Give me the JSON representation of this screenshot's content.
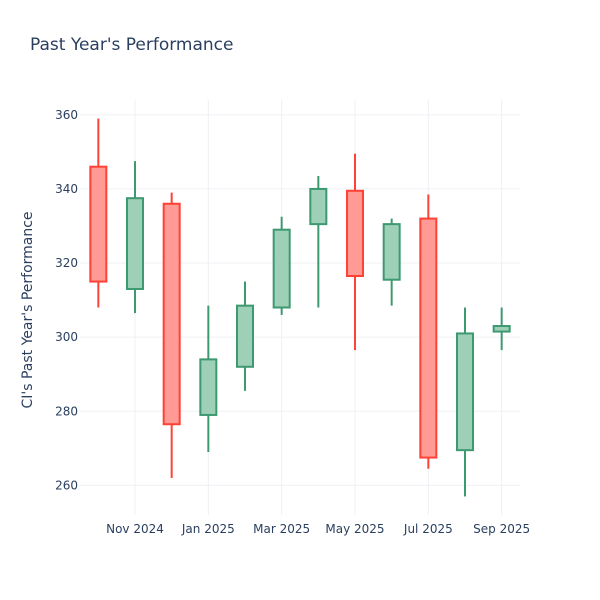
{
  "chart_data": {
    "type": "candlestick",
    "title": "Past Year's Performance",
    "xlabel": "",
    "ylabel": "CI's Past Year's Performance",
    "ylim": [
      252,
      364
    ],
    "y_ticks": [
      260,
      280,
      300,
      320,
      340,
      360
    ],
    "x_tick_labels": [
      "Nov 2024",
      "Jan 2025",
      "Mar 2025",
      "May 2025",
      "Jul 2025",
      "Sep 2025"
    ],
    "x_tick_positions": [
      1,
      3,
      5,
      7,
      9,
      11
    ],
    "colors": {
      "increasing_line": "#3d9970",
      "increasing_fill": "#9ecfb7",
      "decreasing_line": "#ff4136",
      "decreasing_fill": "#ff9a95"
    },
    "candles": [
      {
        "month": "Oct 2024",
        "open": 346,
        "high": 359,
        "low": 308,
        "close": 315
      },
      {
        "month": "Nov 2024",
        "open": 313,
        "high": 347.5,
        "low": 306.5,
        "close": 337.5
      },
      {
        "month": "Dec 2024",
        "open": 336,
        "high": 339,
        "low": 262,
        "close": 276.5
      },
      {
        "month": "Jan 2025",
        "open": 279,
        "high": 308.5,
        "low": 269,
        "close": 294
      },
      {
        "month": "Feb 2025",
        "open": 292,
        "high": 315,
        "low": 285.5,
        "close": 308.5
      },
      {
        "month": "Mar 2025",
        "open": 308,
        "high": 332.5,
        "low": 306,
        "close": 329
      },
      {
        "month": "Apr 2025",
        "open": 330.5,
        "high": 343.5,
        "low": 308,
        "close": 340
      },
      {
        "month": "May 2025",
        "open": 339.5,
        "high": 349.5,
        "low": 296.5,
        "close": 316.5
      },
      {
        "month": "Jun 2025",
        "open": 315.5,
        "high": 332,
        "low": 308.5,
        "close": 330.5
      },
      {
        "month": "Jul 2025",
        "open": 332,
        "high": 338.5,
        "low": 264.5,
        "close": 267.5
      },
      {
        "month": "Aug 2025",
        "open": 269.5,
        "high": 308,
        "low": 257,
        "close": 301
      },
      {
        "month": "Sep 2025",
        "open": 301.5,
        "high": 308,
        "low": 296.5,
        "close": 303
      }
    ]
  }
}
